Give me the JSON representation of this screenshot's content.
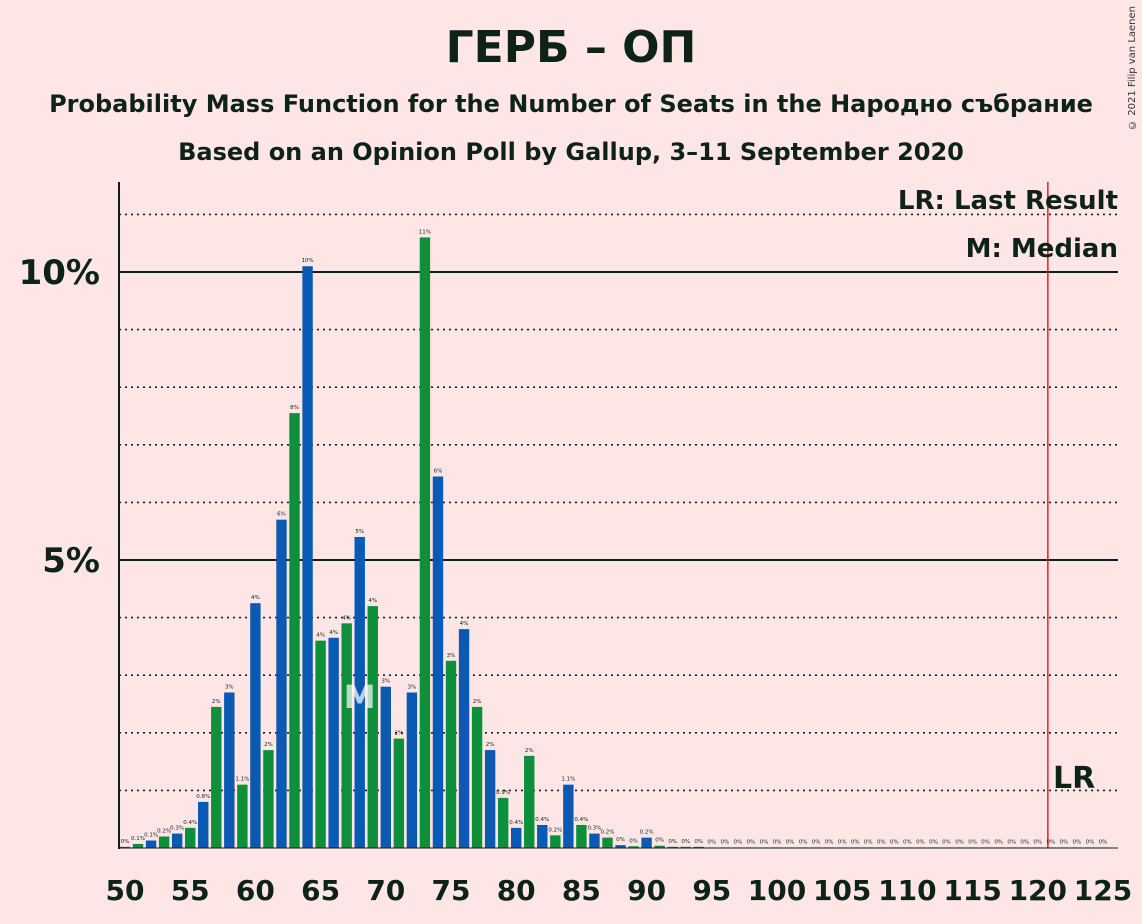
{
  "title": "ГЕРБ – ОП",
  "subtitle1": "Probability Mass Function for the Number of Seats in the Народно събрание",
  "subtitle2": "Based on an Opinion Poll by Gallup, 3–11 September 2020",
  "copyright": "© 2021 Filip van Laenen",
  "legend": {
    "lr": "LR: Last Result",
    "median": "M: Median"
  },
  "markers": {
    "median_label": "M",
    "lr_label": "LR",
    "median_seat": 68,
    "last_result_seat": 121
  },
  "colors": {
    "background": "#ffe6e6",
    "blue": "#0a5ab4",
    "green": "#0d8f3c",
    "lr_line": "#e0261b",
    "text": "#0d2318"
  },
  "chart_data": {
    "type": "bar",
    "x": [
      50,
      51,
      52,
      53,
      54,
      55,
      56,
      57,
      58,
      59,
      60,
      61,
      62,
      63,
      64,
      65,
      66,
      67,
      68,
      69,
      70,
      71,
      72,
      73,
      74,
      75,
      76,
      77,
      78,
      79,
      80,
      81,
      82,
      83,
      84,
      85,
      86,
      87,
      88,
      89,
      90,
      91,
      92,
      93,
      94,
      95,
      96,
      97,
      98,
      99,
      100,
      101,
      102,
      103,
      104,
      105,
      106,
      107,
      108,
      109,
      110,
      111,
      112,
      113,
      114,
      115,
      116,
      117,
      118,
      119,
      120,
      121,
      122,
      123,
      124,
      125
    ],
    "values": [
      0.02,
      0.07,
      0.13,
      0.2,
      0.25,
      0.35,
      0.8,
      2.45,
      2.7,
      1.1,
      4.25,
      1.7,
      5.7,
      7.55,
      10.1,
      3.6,
      3.65,
      3.9,
      5.4,
      4.2,
      2.8,
      1.9,
      2.7,
      10.6,
      6.45,
      3.25,
      3.8,
      2.45,
      1.7,
      0.87,
      0.35,
      1.6,
      0.4,
      0.22,
      1.1,
      0.4,
      0.25,
      0.18,
      0.05,
      0.03,
      0.18,
      0.04,
      0.02,
      0.02,
      0.02,
      0.01,
      0.01,
      0.01,
      0.01,
      0.01,
      0.01,
      0.01,
      0.01,
      0.01,
      0.01,
      0.01,
      0.01,
      0.01,
      0.01,
      0.01,
      0.01,
      0.01,
      0.01,
      0.01,
      0.01,
      0.01,
      0.01,
      0.01,
      0.01,
      0.01,
      0.01,
      0.01,
      0.01,
      0.01,
      0.01,
      0.01
    ],
    "data_labels": [
      "0%",
      "0.1%",
      "0.1%",
      "0.2%",
      "0.3%",
      "0.4%",
      "0.8%",
      "2%",
      "3%",
      "1.1%",
      "4%",
      "2%",
      "6%",
      "8%",
      "10%",
      "4%",
      "4%",
      "4%",
      "5%",
      "4%",
      "3%",
      "2%",
      "3%",
      "11%",
      "6%",
      "3%",
      "4%",
      "2%",
      "2%",
      "0.9%",
      "0.4%",
      "2%",
      "0.4%",
      "0.2%",
      "1.1%",
      "0.4%",
      "0.3%",
      "0.2%",
      "0%",
      "0%",
      "0.2%",
      "0%",
      "0%",
      "0%",
      "0%",
      "0%",
      "0%",
      "0%",
      "0%",
      "0%",
      "0%",
      "0%",
      "0%",
      "0%",
      "0%",
      "0%",
      "0%",
      "0%",
      "0%",
      "0%",
      "0%",
      "0%",
      "0%",
      "0%",
      "0%",
      "0%",
      "0%",
      "0%",
      "0%",
      "0%",
      "0%",
      "0%",
      "0%",
      "0%",
      "0%",
      "0%"
    ],
    "x_ticks": [
      "50",
      "55",
      "60",
      "65",
      "70",
      "75",
      "80",
      "85",
      "90",
      "95",
      "100",
      "105",
      "110",
      "115",
      "120",
      "125"
    ],
    "y_ticks": [
      {
        "value": 5,
        "label": "5%"
      },
      {
        "value": 10,
        "label": "10%"
      }
    ],
    "ylim": [
      0,
      11.5
    ],
    "xlim": [
      50,
      125
    ],
    "grid": "dotted at every 1%, solid at 5% and 10%",
    "legend_position": "top-right"
  }
}
